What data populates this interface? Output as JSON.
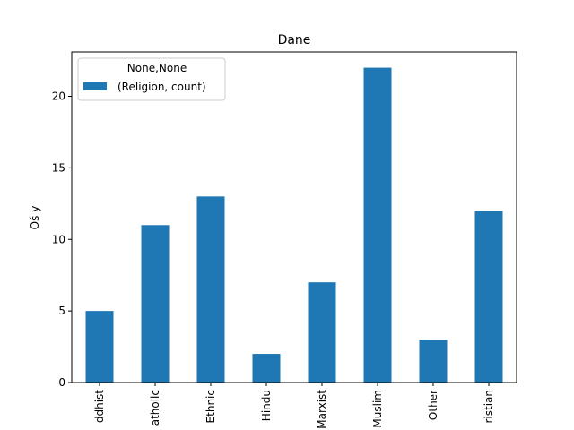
{
  "chart_data": {
    "type": "bar",
    "title": "Dane",
    "ylabel": "Oś y",
    "xlabel": "",
    "categories": [
      "Buddhist",
      "Catholic",
      "Ethnic",
      "Hindu",
      "Marxist",
      "Muslim",
      "Other",
      "Protestant Christian"
    ],
    "category_tick_labels": [
      "ddhist",
      "atholic",
      "Ethnic",
      "Hindu",
      "Marxist",
      "Muslim",
      "Other",
      "ristian"
    ],
    "series": [
      {
        "name": "(Religion, count)",
        "values": [
          5,
          11,
          13,
          2,
          7,
          22,
          3,
          12
        ]
      }
    ],
    "ylim": [
      0,
      23.1
    ],
    "yticks": [
      0,
      5,
      10,
      15,
      20
    ],
    "legend": {
      "title": "None,None",
      "placement": "top-left"
    },
    "bar_color": "#1f77b4",
    "grid": false
  }
}
